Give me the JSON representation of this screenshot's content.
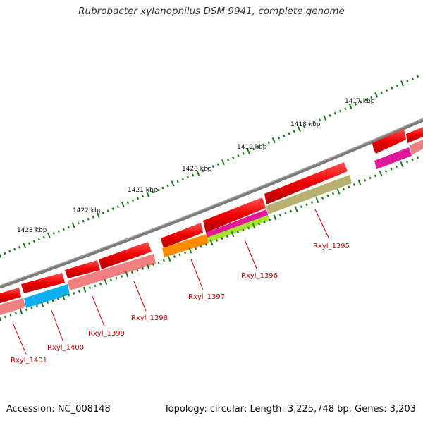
{
  "title": "Rubrobacter xylanophilus DSM 9941, complete genome",
  "footer": {
    "accession": "Accession: NC_008148",
    "stats": "Topology: circular; Length: 3,225,748 bp; Genes: 3,203"
  },
  "ticks": [
    "1417 kbp",
    "1418 kbp",
    "1419 kbp",
    "1420 kbp",
    "1421 kbp",
    "1422 kbp",
    "1423 kbp"
  ],
  "gene_labels": [
    "Rxyl_1395",
    "Rxyl_1396",
    "Rxyl_1397",
    "Rxyl_1398",
    "Rxyl_1399",
    "Rxyl_1400",
    "Rxyl_1401"
  ],
  "colors": {
    "backbone": "#7a7a7a",
    "gene": "#ee0000",
    "tick": "#1a7a1a",
    "label": "#cc0000",
    "cog_1395": "#b8b070",
    "cog_1396a": "#e0189a",
    "cog_1396b": "#a8e030",
    "cog_1397": "#ff8c00",
    "cog_1398": "#f08080",
    "cog_1400": "#10b0f0",
    "cog_1401": "#f08080"
  }
}
